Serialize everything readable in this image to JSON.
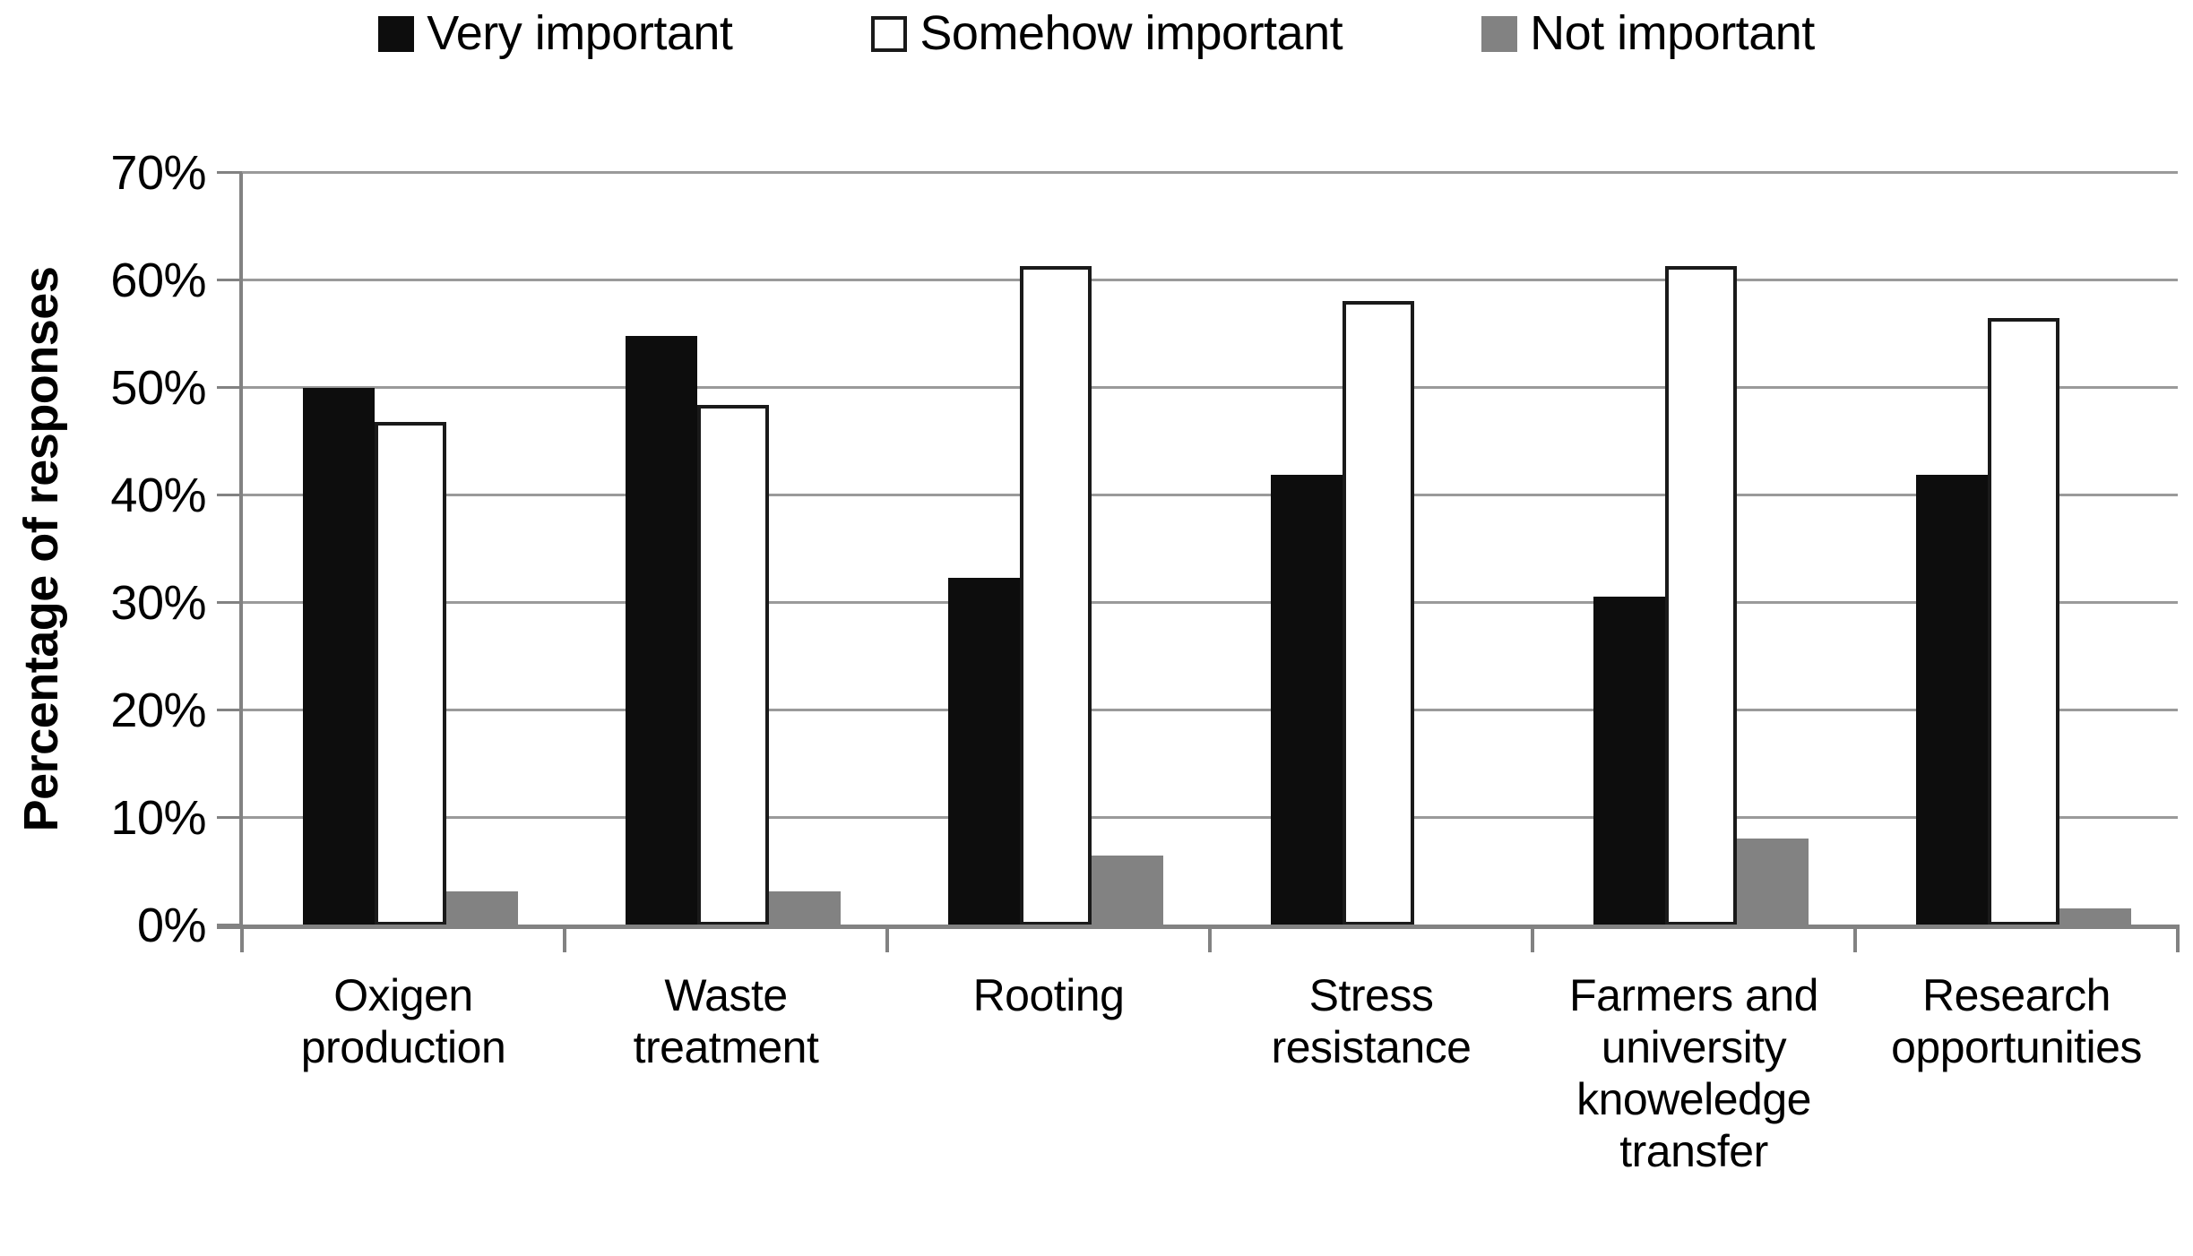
{
  "chart_data": {
    "type": "bar",
    "title": "",
    "categories": [
      "Oxigen\nproduction",
      "Waste\ntreatment",
      "Rooting",
      "Stress\nresistance",
      "Farmers and\nuniversity\nknoweledge\ntransfer",
      "Research\nopportunities"
    ],
    "series": [
      {
        "name": "Very important",
        "color": "#0d0d0d",
        "border": "#0d0d0d",
        "values": [
          50.0,
          54.8,
          32.3,
          41.9,
          30.6,
          41.9
        ]
      },
      {
        "name": "Somehow important",
        "color": "#ffffff",
        "border": "#1a1a1a",
        "values": [
          46.8,
          48.4,
          61.3,
          58.1,
          61.3,
          56.5
        ]
      },
      {
        "name": "Not important",
        "color": "#828282",
        "border": "#828282",
        "values": [
          3.2,
          3.2,
          6.5,
          0.0,
          8.1,
          1.6
        ]
      }
    ],
    "xlabel": "",
    "ylabel": "Percentage of responses",
    "ylim": [
      0,
      70
    ],
    "ytick_step": 10,
    "yticks": [
      "0%",
      "10%",
      "20%",
      "30%",
      "40%",
      "50%",
      "60%",
      "70%"
    ],
    "grid": true,
    "legend_position": "top"
  },
  "colors": {
    "background": "#ffffff",
    "gridline": "#9a9a9a",
    "axis": "#828282",
    "text": "#000000",
    "bar_black": "#0d0d0d",
    "bar_white": "#ffffff",
    "bar_white_border": "#1a1a1a",
    "bar_gray": "#828282"
  }
}
